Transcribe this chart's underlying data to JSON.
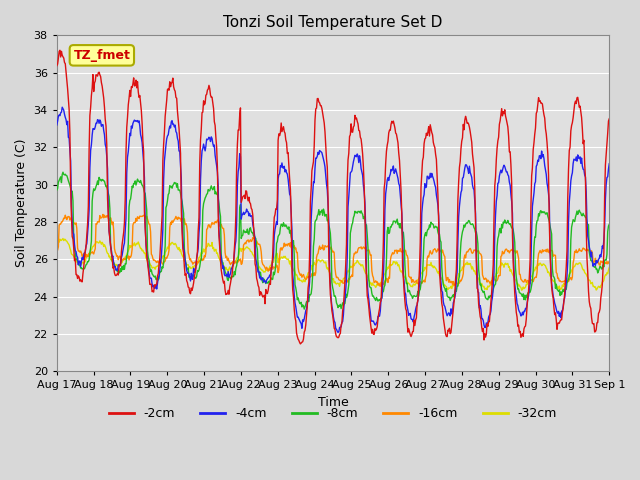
{
  "title": "Tonzi Soil Temperature Set D",
  "xlabel": "Time",
  "ylabel": "Soil Temperature (C)",
  "ylim": [
    20,
    38
  ],
  "yticks": [
    20,
    22,
    24,
    26,
    28,
    30,
    32,
    34,
    36,
    38
  ],
  "annotation_text": "TZ_fmet",
  "annotation_color": "#cc0000",
  "annotation_bg": "#ffff99",
  "annotation_border": "#aaaa00",
  "colors": {
    "-2cm": "#dd1111",
    "-4cm": "#2222ee",
    "-8cm": "#22bb22",
    "-16cm": "#ff8800",
    "-32cm": "#dddd00"
  },
  "legend_labels": [
    "-2cm",
    "-4cm",
    "-8cm",
    "-16cm",
    "-32cm"
  ],
  "bg_color": "#d8d8d8",
  "plot_bg_color": "#e0e0e0",
  "grid_color": "#ffffff",
  "n_days": 15,
  "n_points": 720
}
